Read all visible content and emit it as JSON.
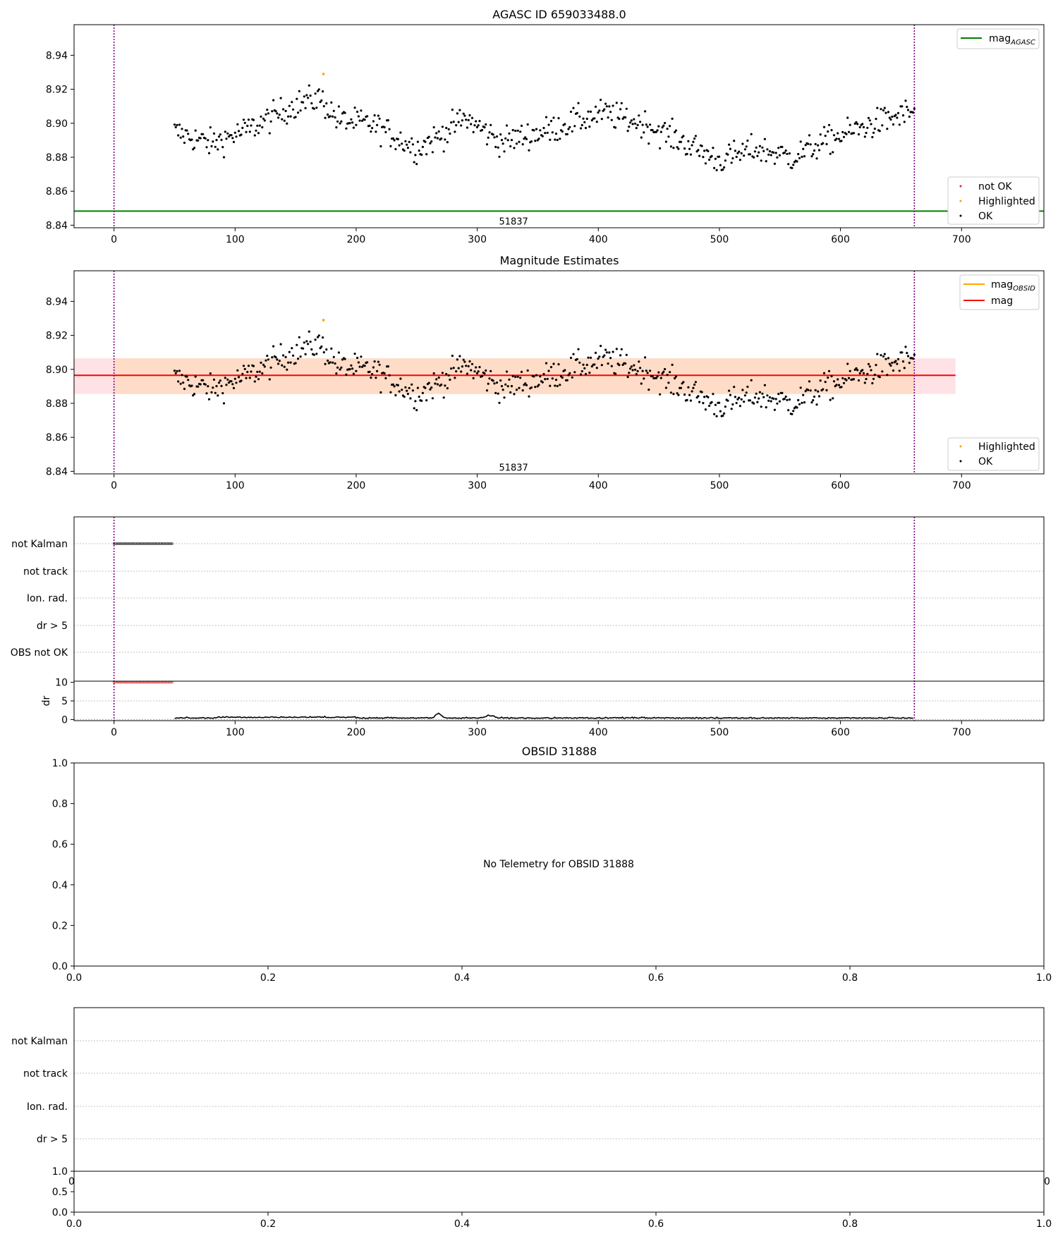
{
  "colors": {
    "ok": "#000000",
    "not_ok": "#d62728",
    "highlighted": "#ff9f0e",
    "mag_agasc": "#008000",
    "mag_obsid": "#ffa500",
    "mag": "#ff0000",
    "vline": "#800080",
    "band_outer": "#ffb6c1",
    "band_inner": "#ffdab9"
  },
  "chart_data": [
    {
      "type": "scatter",
      "title": "AGASC ID 659033488.0",
      "xlim": [
        -33,
        768
      ],
      "ylim": [
        8.8385,
        8.958
      ],
      "xticks": [
        "0",
        "100",
        "200",
        "300",
        "400",
        "500",
        "600",
        "700"
      ],
      "yticks": [
        "8.84",
        "8.86",
        "8.88",
        "8.90",
        "8.92",
        "8.94"
      ],
      "vlines": [
        0,
        661
      ],
      "hline": {
        "name": "mag_AGASC",
        "y": 8.8483
      },
      "annotation": {
        "text": "51837",
        "x": 330,
        "y": 8.8425
      },
      "highlighted_points": [
        {
          "x": 173,
          "y": 8.929
        }
      ],
      "legend_lines": [
        {
          "main": "mag",
          "sub": "AGASC"
        }
      ],
      "legend_points": [
        "not OK",
        "Highlighted",
        "OK"
      ]
    },
    {
      "type": "scatter",
      "title": "Magnitude Estimates",
      "xlim": [
        -33,
        768
      ],
      "ylim": [
        8.8385,
        8.958
      ],
      "xticks": [
        "0",
        "100",
        "200",
        "300",
        "400",
        "500",
        "600",
        "700"
      ],
      "yticks": [
        "8.84",
        "8.86",
        "8.88",
        "8.90",
        "8.92",
        "8.94"
      ],
      "vlines": [
        0,
        661
      ],
      "mag_line": {
        "y": 8.8965,
        "x_range": [
          -33,
          695
        ]
      },
      "band": {
        "y_range": [
          8.8855,
          8.9065
        ],
        "x_range": [
          -33,
          695
        ],
        "inner_x_range": [
          0,
          661
        ]
      },
      "annotation": {
        "text": "51837",
        "x": 330,
        "y": 8.8425
      },
      "highlighted_points": [
        {
          "x": 173,
          "y": 8.929
        }
      ],
      "legend_lines": [
        {
          "main": "mag",
          "sub": "OBSID"
        },
        {
          "main": "mag",
          "sub": ""
        }
      ],
      "legend_points": [
        "Highlighted",
        "OK"
      ]
    },
    {
      "type": "scatter",
      "title": "",
      "xlim": [
        -33,
        768
      ],
      "xticks": [
        "0",
        "100",
        "200",
        "300",
        "400",
        "500",
        "600",
        "700"
      ],
      "flag_labels": [
        "not Kalman",
        "not track",
        "Ion. rad.",
        "dr > 5",
        "OBS not OK"
      ],
      "not_kalman_x_range": [
        0,
        49
      ],
      "vlines": [
        0,
        661
      ],
      "dr": {
        "ylabel": "dr",
        "yticks": [
          "0",
          "5",
          "10"
        ],
        "ylim": [
          -0.3,
          10.3
        ],
        "clipped_x_range": [
          0,
          49
        ],
        "x_range": [
          50,
          660
        ]
      }
    },
    {
      "type": "scatter",
      "title": "OBSID 31888",
      "message": "No Telemetry for OBSID 31888",
      "xlim": [
        0,
        1
      ],
      "ylim": [
        0,
        1
      ],
      "xticks": [
        "0.0",
        "0.2",
        "0.4",
        "0.6",
        "0.8",
        "1.0"
      ],
      "yticks": [
        "0.0",
        "0.2",
        "0.4",
        "0.6",
        "0.8",
        "1.0"
      ]
    },
    {
      "type": "scatter",
      "title": "",
      "flag_labels": [
        "not Kalman",
        "not track",
        "Ion. rad.",
        "dr > 5"
      ],
      "xlim": [
        0,
        1
      ],
      "xticks": [
        "0.0",
        "0.2",
        "0.4",
        "0.6",
        "0.8",
        "1.0"
      ],
      "overlap_tick_left": "0",
      "overlap_tick_right": "0",
      "dr_yticks": [
        "0.0",
        "0.5",
        "1.0"
      ]
    }
  ]
}
